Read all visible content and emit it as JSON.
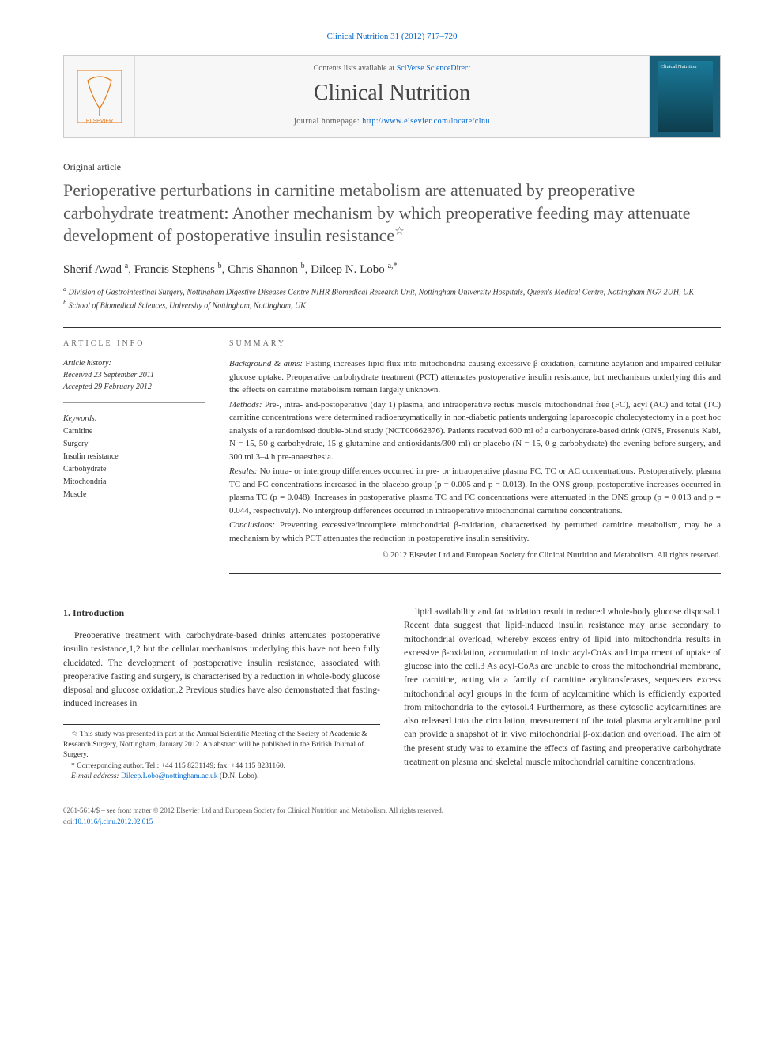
{
  "citation": "Clinical Nutrition 31 (2012) 717–720",
  "masthead": {
    "contents_prefix": "Contents lists available at ",
    "contents_link": "SciVerse ScienceDirect",
    "journal": "Clinical Nutrition",
    "homepage_prefix": "journal homepage: ",
    "homepage_url": "http://www.elsevier.com/locate/clnu",
    "cover_title": "Clinical Nutrition",
    "publisher": "ELSEVIER"
  },
  "article": {
    "type": "Original article",
    "title": "Perioperative perturbations in carnitine metabolism are attenuated by preoperative carbohydrate treatment: Another mechanism by which preoperative feeding may attenuate development of postoperative insulin resistance",
    "star": "☆",
    "authors_html": "Sherif Awad <sup>a</sup>, Francis Stephens <sup>b</sup>, Chris Shannon <sup>b</sup>, Dileep N. Lobo <sup>a,*</sup>",
    "affiliations": {
      "a": "Division of Gastrointestinal Surgery, Nottingham Digestive Diseases Centre NIHR Biomedical Research Unit, Nottingham University Hospitals, Queen's Medical Centre, Nottingham NG7 2UH, UK",
      "b": "School of Biomedical Sciences, University of Nottingham, Nottingham, UK"
    }
  },
  "info": {
    "heading_left": "ARTICLE INFO",
    "heading_right": "SUMMARY",
    "history": {
      "label": "Article history:",
      "received": "Received 23 September 2011",
      "accepted": "Accepted 29 February 2012"
    },
    "keywords": {
      "label": "Keywords:",
      "list": [
        "Carnitine",
        "Surgery",
        "Insulin resistance",
        "Carbohydrate",
        "Mitochondria",
        "Muscle"
      ]
    }
  },
  "summary": {
    "background_label": "Background & aims:",
    "background": " Fasting increases lipid flux into mitochondria causing excessive β-oxidation, carnitine acylation and impaired cellular glucose uptake. Preoperative carbohydrate treatment (PCT) attenuates postoperative insulin resistance, but mechanisms underlying this and the effects on carnitine metabolism remain largely unknown.",
    "methods_label": "Methods:",
    "methods": " Pre-, intra- and-postoperative (day 1) plasma, and intraoperative rectus muscle mitochondrial free (FC), acyl (AC) and total (TC) carnitine concentrations were determined radioenzymatically in non-diabetic patients undergoing laparoscopic cholecystectomy in a post hoc analysis of a randomised double-blind study (NCT00662376). Patients received 600 ml of a carbohydrate-based drink (ONS, Fresenuis Kabi, N = 15, 50 g carbohydrate, 15 g glutamine and antioxidants/300 ml) or placebo (N = 15, 0 g carbohydrate) the evening before surgery, and 300 ml 3–4 h pre-anaesthesia.",
    "results_label": "Results:",
    "results": " No intra- or intergroup differences occurred in pre- or intraoperative plasma FC, TC or AC concentrations. Postoperatively, plasma TC and FC concentrations increased in the placebo group (p = 0.005 and p = 0.013). In the ONS group, postoperative increases occurred in plasma TC (p = 0.048). Increases in postoperative plasma TC and FC concentrations were attenuated in the ONS group (p = 0.013 and p = 0.044, respectively). No intergroup differences occurred in intraoperative mitochondrial carnitine concentrations.",
    "conclusions_label": "Conclusions:",
    "conclusions": " Preventing excessive/incomplete mitochondrial β-oxidation, characterised by perturbed carnitine metabolism, may be a mechanism by which PCT attenuates the reduction in postoperative insulin sensitivity.",
    "copyright": "© 2012 Elsevier Ltd and European Society for Clinical Nutrition and Metabolism. All rights reserved."
  },
  "body": {
    "intro_heading": "1. Introduction",
    "intro_p1": "Preoperative treatment with carbohydrate-based drinks attenuates postoperative insulin resistance,1,2 but the cellular mechanisms underlying this have not been fully elucidated. The development of postoperative insulin resistance, associated with preoperative fasting and surgery, is characterised by a reduction in whole-body glucose disposal and glucose oxidation.2 Previous studies have also demonstrated that fasting-induced increases in",
    "intro_p2": "lipid availability and fat oxidation result in reduced whole-body glucose disposal.1 Recent data suggest that lipid-induced insulin resistance may arise secondary to mitochondrial overload, whereby excess entry of lipid into mitochondria results in excessive β-oxidation, accumulation of toxic acyl-CoAs and impairment of uptake of glucose into the cell.3 As acyl-CoAs are unable to cross the mitochondrial membrane, free carnitine, acting via a family of carnitine acyltransferases, sequesters excess mitochondrial acyl groups in the form of acylcarnitine which is efficiently exported from mitochondria to the cytosol.4 Furthermore, as these cytosolic acylcarnitines are also released into the circulation, measurement of the total plasma acylcarnitine pool can provide a snapshot of in vivo mitochondrial β-oxidation and overload. The aim of the present study was to examine the effects of fasting and preoperative carbohydrate treatment on plasma and skeletal muscle mitochondrial carnitine concentrations."
  },
  "footnotes": {
    "star": "☆ This study was presented in part at the Annual Scientific Meeting of the Society of Academic & Research Surgery, Nottingham, January 2012. An abstract will be published in the British Journal of Surgery.",
    "corr": "* Corresponding author. Tel.: +44 115 8231149; fax: +44 115 8231160.",
    "email_label": "E-mail address: ",
    "email": "Dileep.Lobo@nottingham.ac.uk",
    "email_suffix": " (D.N. Lobo)."
  },
  "footer": {
    "line1": "0261-5614/$ – see front matter © 2012 Elsevier Ltd and European Society for Clinical Nutrition and Metabolism. All rights reserved.",
    "doi_label": "doi:",
    "doi": "10.1016/j.clnu.2012.02.015"
  },
  "colors": {
    "link": "#0066cc",
    "text": "#333333",
    "title_gray": "#555555",
    "border": "#cccccc",
    "cover_bg": "#1a5f7a"
  }
}
